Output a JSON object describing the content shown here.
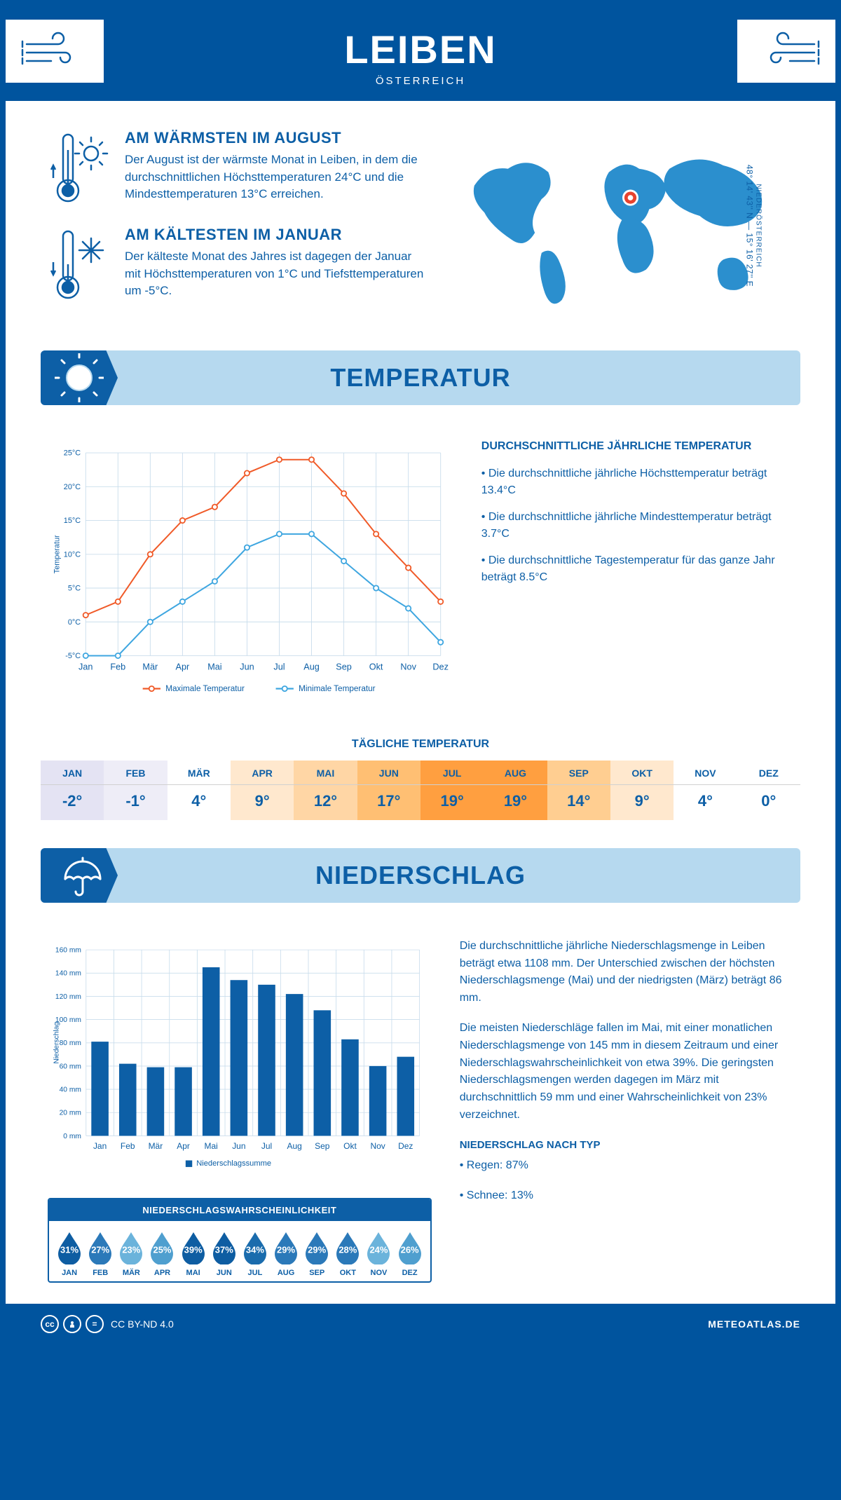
{
  "header": {
    "title": "LEIBEN",
    "subtitle": "ÖSTERREICH"
  },
  "coords": {
    "line": "48° 14' 43'' N — 15° 16' 27'' E",
    "region": "NIEDERÖSTERREICH"
  },
  "facts": {
    "warm": {
      "title": "AM WÄRMSTEN IM AUGUST",
      "text": "Der August ist der wärmste Monat in Leiben, in dem die durchschnittlichen Höchsttemperaturen 24°C und die Mindesttemperaturen 13°C erreichen."
    },
    "cold": {
      "title": "AM KÄLTESTEN IM JANUAR",
      "text": "Der kälteste Monat des Jahres ist dagegen der Januar mit Höchsttemperaturen von 1°C und Tiefsttemperaturen um -5°C."
    }
  },
  "sections": {
    "temperature": "TEMPERATUR",
    "precipitation": "NIEDERSCHLAG"
  },
  "months": [
    "Jan",
    "Feb",
    "Mär",
    "Apr",
    "Mai",
    "Jun",
    "Jul",
    "Aug",
    "Sep",
    "Okt",
    "Nov",
    "Dez"
  ],
  "months_upper": [
    "JAN",
    "FEB",
    "MÄR",
    "APR",
    "MAI",
    "JUN",
    "JUL",
    "AUG",
    "SEP",
    "OKT",
    "NOV",
    "DEZ"
  ],
  "temp_chart": {
    "type": "line",
    "ylabel": "Temperatur",
    "ylim": [
      -5,
      25
    ],
    "ytick_step": 5,
    "ytick_suffix": "°C",
    "max_series": {
      "label": "Maximale Temperatur",
      "color": "#f05a28",
      "values": [
        1,
        3,
        10,
        15,
        17,
        22,
        24,
        24,
        19,
        13,
        8,
        3
      ]
    },
    "min_series": {
      "label": "Minimale Temperatur",
      "color": "#3ea6e0",
      "values": [
        -5,
        -5,
        0,
        3,
        6,
        11,
        13,
        13,
        9,
        5,
        2,
        -3
      ]
    },
    "grid_color": "#c9ddec",
    "line_width": 2.2,
    "marker_radius": 4
  },
  "temp_info": {
    "heading": "DURCHSCHNITTLICHE JÄHRLICHE TEMPERATUR",
    "b1": "• Die durchschnittliche jährliche Höchsttemperatur beträgt 13.4°C",
    "b2": "• Die durchschnittliche jährliche Mindesttemperatur beträgt 3.7°C",
    "b3": "• Die durchschnittliche Tagestemperatur für das ganze Jahr beträgt 8.5°C"
  },
  "daily": {
    "title": "TÄGLICHE TEMPERATUR",
    "values": [
      "-2°",
      "-1°",
      "4°",
      "9°",
      "12°",
      "17°",
      "19°",
      "19°",
      "14°",
      "9°",
      "4°",
      "0°"
    ],
    "colors": [
      "#e4e3f3",
      "#eeedf7",
      "#ffffff",
      "#ffe8ce",
      "#ffd6a5",
      "#ffbf73",
      "#ff9f40",
      "#ff9f40",
      "#ffce91",
      "#ffe8ce",
      "#ffffff",
      "#ffffff"
    ]
  },
  "precip_chart": {
    "type": "bar",
    "ylabel": "Niederschlag",
    "ylim": [
      0,
      160
    ],
    "ytick_step": 20,
    "ytick_suffix": " mm",
    "values": [
      81,
      62,
      59,
      59,
      145,
      134,
      130,
      122,
      108,
      83,
      60,
      68
    ],
    "bar_color": "#0d5fa6",
    "grid_color": "#c9ddec",
    "legend": "Niederschlagssumme"
  },
  "precip_text": {
    "p1": "Die durchschnittliche jährliche Niederschlagsmenge in Leiben beträgt etwa 1108 mm. Der Unterschied zwischen der höchsten Niederschlagsmenge (Mai) und der niedrigsten (März) beträgt 86 mm.",
    "p2": "Die meisten Niederschläge fallen im Mai, mit einer monatlichen Niederschlagsmenge von 145 mm in diesem Zeitraum und einer Niederschlagswahrscheinlichkeit von etwa 39%. Die geringsten Niederschlagsmengen werden dagegen im März mit durchschnittlich 59 mm und einer Wahrscheinlichkeit von 23% verzeichnet.",
    "type_heading": "NIEDERSCHLAG NACH TYP",
    "rain": "• Regen: 87%",
    "snow": "• Schnee: 13%"
  },
  "prob": {
    "title": "NIEDERSCHLAGSWAHRSCHEINLICHKEIT",
    "values": [
      "31%",
      "27%",
      "23%",
      "25%",
      "39%",
      "37%",
      "34%",
      "29%",
      "29%",
      "28%",
      "24%",
      "26%"
    ],
    "colors": [
      "#0e5da2",
      "#2b79b9",
      "#6bb3db",
      "#4f9fcf",
      "#0e5da2",
      "#0e5da2",
      "#1a6cad",
      "#2b79b9",
      "#2b79b9",
      "#2b79b9",
      "#6bb3db",
      "#4f9fcf"
    ]
  },
  "footer": {
    "license": "CC BY-ND 4.0",
    "site": "METEOATLAS.DE"
  }
}
